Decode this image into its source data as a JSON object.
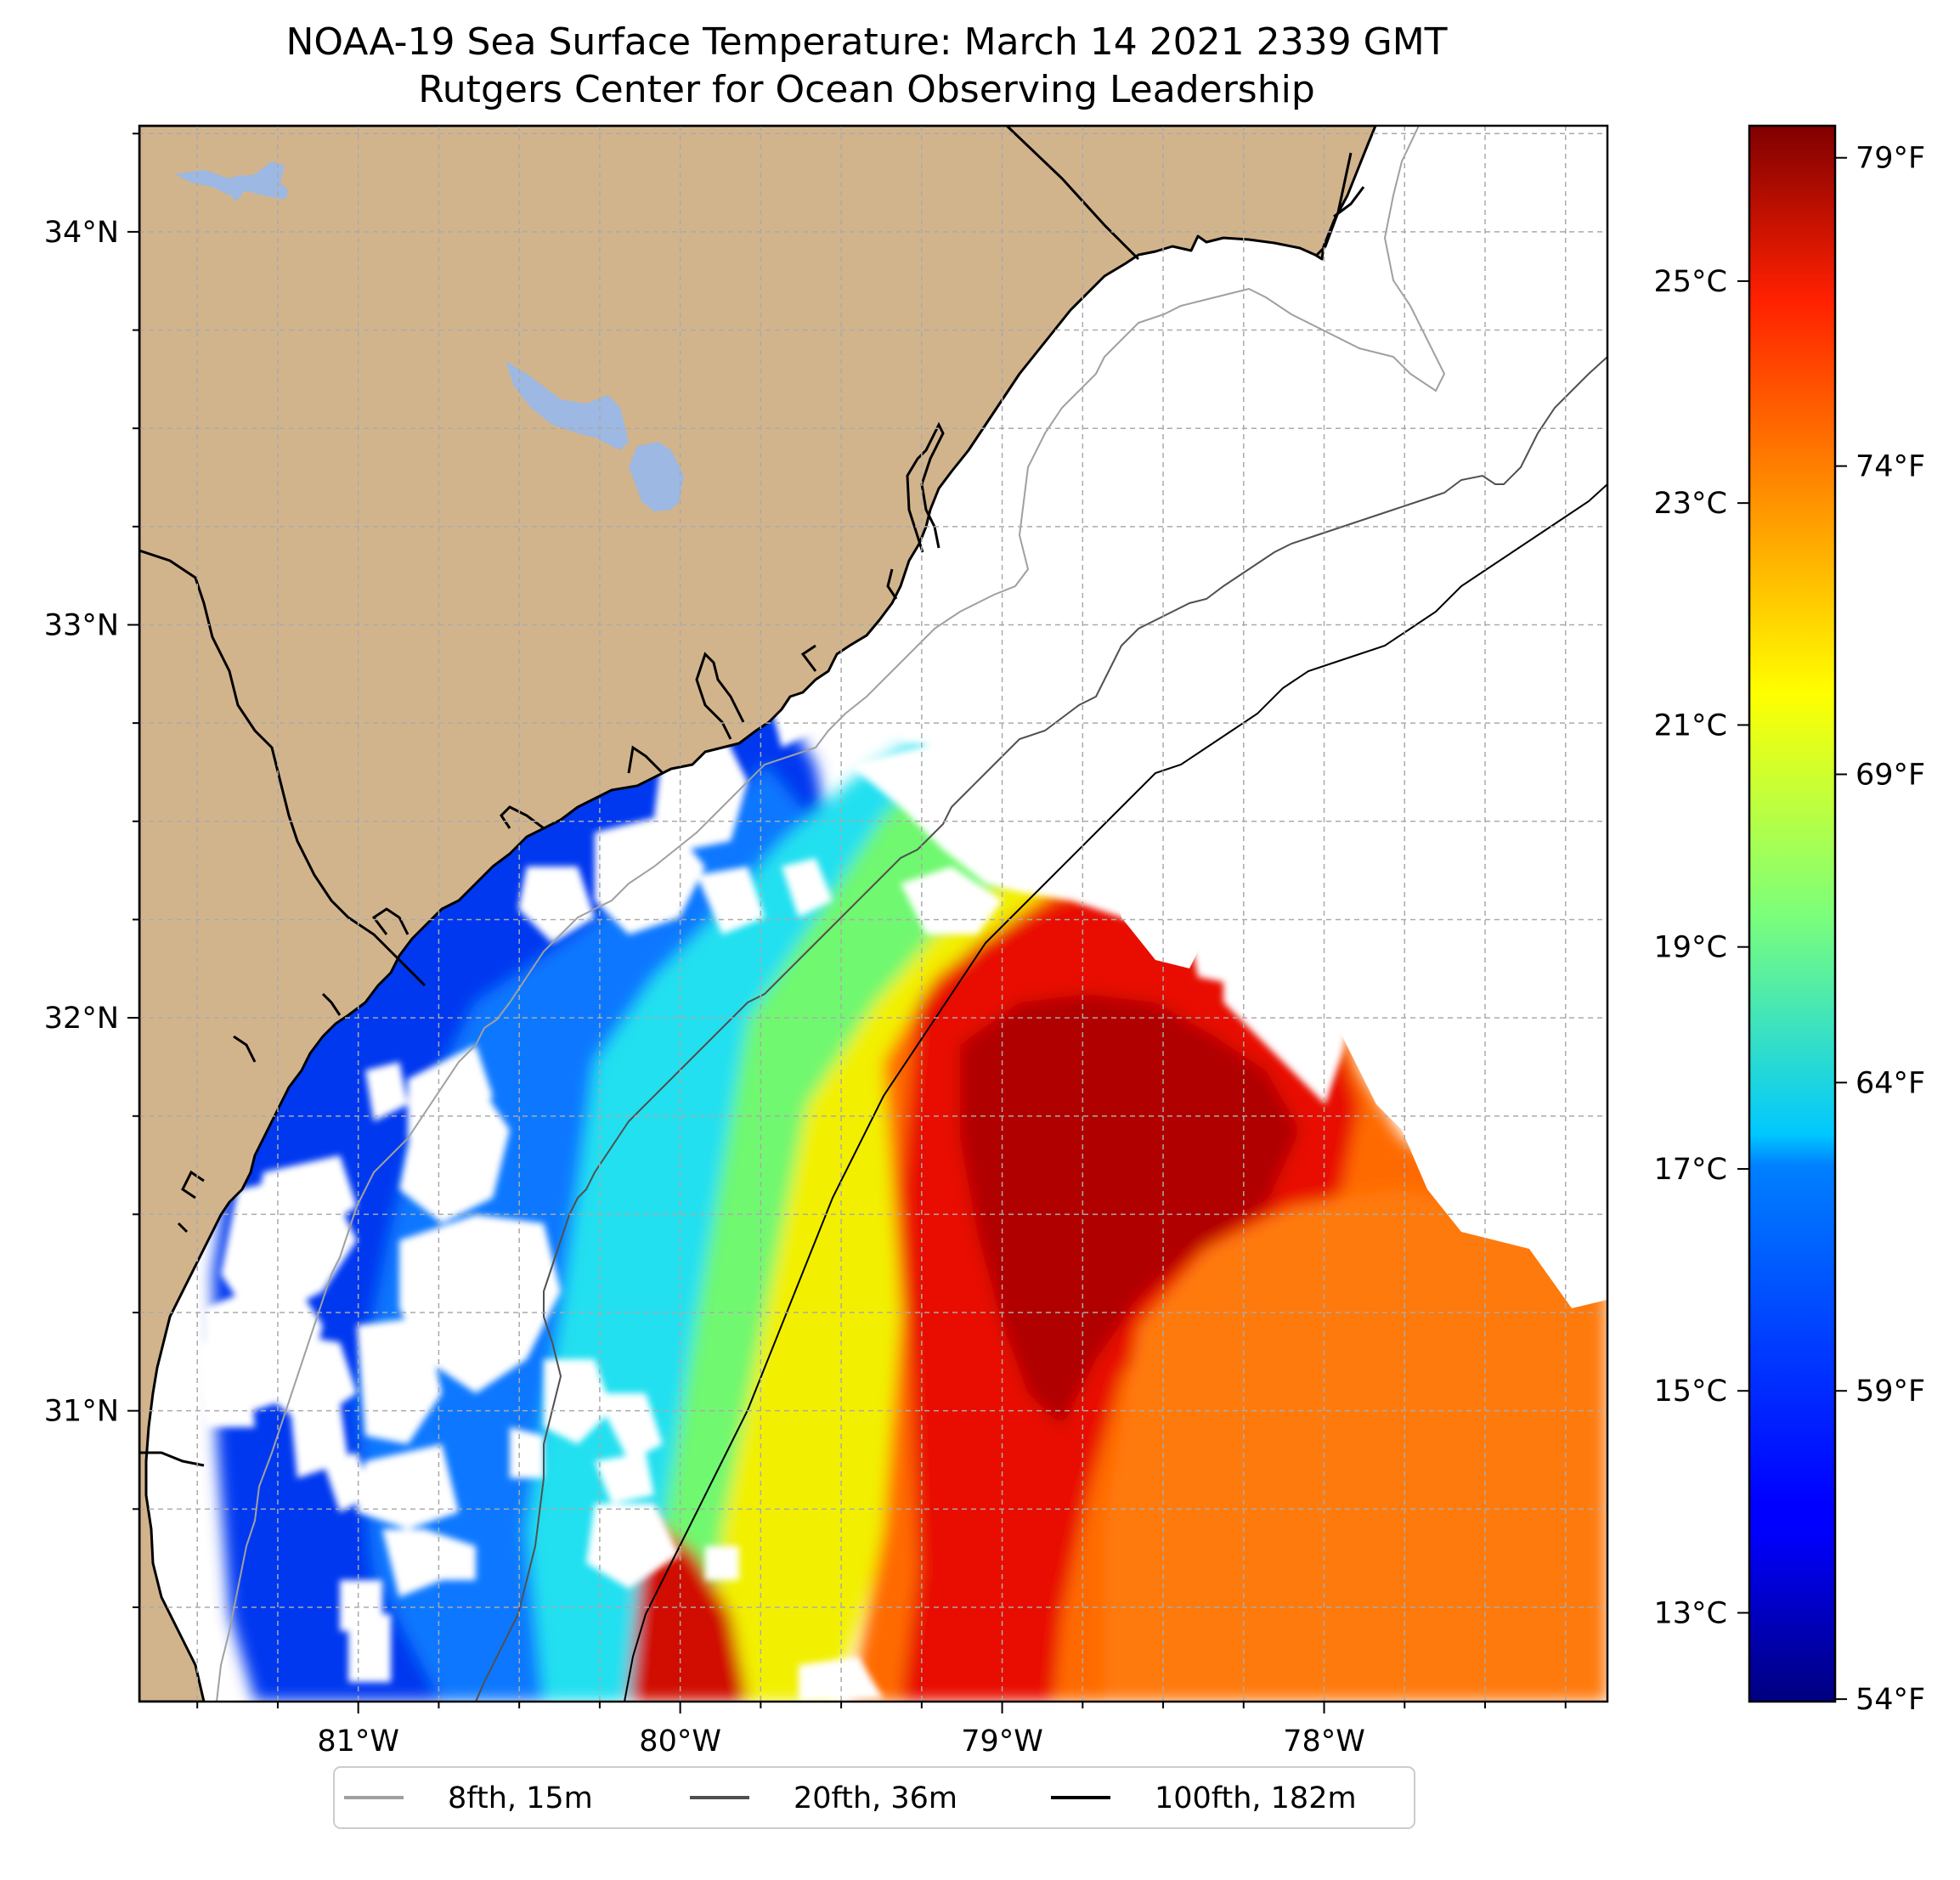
{
  "title": {
    "line1": "NOAA-19 Sea Surface Temperature: March 14 2021 2339 GMT",
    "line2": "Rutgers Center for Ocean Observing Leadership"
  },
  "map": {
    "extent": {
      "lon_min": -81.68,
      "lon_max": -77.12,
      "lat_min": 30.26,
      "lat_max": 34.27
    },
    "lat_ticks": [
      {
        "value": 34,
        "label": "34°N"
      },
      {
        "value": 33,
        "label": "33°N"
      },
      {
        "value": 32,
        "label": "32°N"
      },
      {
        "value": 31,
        "label": "31°N"
      }
    ],
    "lon_ticks": [
      {
        "value": -81,
        "label": "81°W"
      },
      {
        "value": -80,
        "label": "80°W"
      },
      {
        "value": -79,
        "label": "79°W"
      },
      {
        "value": -78,
        "label": "78°W"
      }
    ],
    "grid_minor_step_deg": 0.25,
    "land_color": "#d2b48c",
    "lake_color": "#9cb8e3",
    "grid_color": "#aaaaaa"
  },
  "colorbar": {
    "colormap": "jet",
    "celsius_range": [
      12.2,
      26.4
    ],
    "celsius_ticks": [
      {
        "value": 25,
        "label": "25°C"
      },
      {
        "value": 23,
        "label": "23°C"
      },
      {
        "value": 21,
        "label": "21°C"
      },
      {
        "value": 19,
        "label": "19°C"
      },
      {
        "value": 17,
        "label": "17°C"
      },
      {
        "value": 15,
        "label": "15°C"
      },
      {
        "value": 13,
        "label": "13°C"
      }
    ],
    "fahrenheit_ticks": [
      {
        "value": 79,
        "label": "79°F"
      },
      {
        "value": 74,
        "label": "74°F"
      },
      {
        "value": 69,
        "label": "69°F"
      },
      {
        "value": 64,
        "label": "64°F"
      },
      {
        "value": 59,
        "label": "59°F"
      },
      {
        "value": 54,
        "label": "54°F"
      }
    ]
  },
  "legend": {
    "items": [
      {
        "label": "8fth, 15m",
        "color": "#a0a0a0"
      },
      {
        "label": "20fth, 36m",
        "color": "#505050"
      },
      {
        "label": "100fth, 182m",
        "color": "#000000"
      }
    ]
  }
}
